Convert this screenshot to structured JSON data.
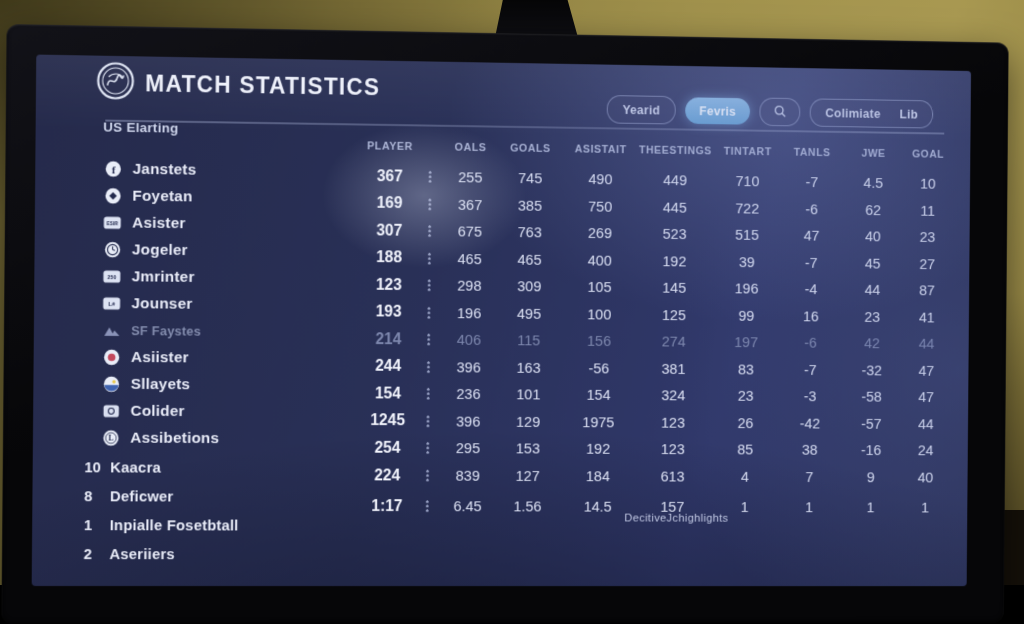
{
  "header": {
    "title": "MATCH STATISTICS"
  },
  "toolbar": {
    "buttons": [
      {
        "label": "Yearid",
        "type": "default"
      },
      {
        "label": "Fevris",
        "type": "primary"
      },
      {
        "icon": "search-icon",
        "type": "icon"
      },
      {
        "type": "group",
        "labels": [
          "Colimiate",
          "Lib"
        ]
      }
    ]
  },
  "sidebar": {
    "section_label": "US Elarting",
    "teams": [
      {
        "icon": "facebook-circle-icon",
        "label": "Janstets"
      },
      {
        "icon": "diamond-circle-icon",
        "label": "Foyetan"
      },
      {
        "icon": "esir-badge-icon",
        "label": "Asister"
      },
      {
        "icon": "clock-circle-icon",
        "label": "Jogeler"
      },
      {
        "icon": "numeric-badge-icon",
        "label": "Jmrinter"
      },
      {
        "icon": "lh-badge-icon",
        "label": "Jounser"
      },
      {
        "icon": "mountain-icon",
        "label": "SF Faystes",
        "dim": true
      },
      {
        "icon": "record-circle-icon",
        "label": "Asiister"
      },
      {
        "icon": "globe-circle-icon",
        "label": "Sllayets"
      },
      {
        "icon": "camera-badge-icon",
        "label": "Colider"
      },
      {
        "icon": "license-circle-icon",
        "label": "Assibetions"
      }
    ],
    "ranked": [
      {
        "rank": "10",
        "label": "Kaacra"
      },
      {
        "rank": "8",
        "label": "Deficwer"
      },
      {
        "rank": "1",
        "label": "Inpialle Fosetbtall"
      },
      {
        "rank": "2",
        "label": "Aseriiers"
      }
    ]
  },
  "table": {
    "columns": [
      "PLAYER",
      "OALS",
      "GOALS",
      "ASISTAIT",
      "THEESTINGS",
      "TINTART",
      "TANLS",
      "JWE",
      "GOAL"
    ],
    "rows": [
      {
        "values": [
          "367",
          "255",
          "745",
          "490",
          "449",
          "710",
          "-7",
          "4.5",
          "10"
        ]
      },
      {
        "values": [
          "169",
          "367",
          "385",
          "750",
          "445",
          "722",
          "-6",
          "62",
          "11"
        ]
      },
      {
        "values": [
          "307",
          "675",
          "763",
          "269",
          "523",
          "515",
          "47",
          "40",
          "23"
        ]
      },
      {
        "values": [
          "188",
          "465",
          "465",
          "400",
          "192",
          "39",
          "-7",
          "45",
          "27"
        ]
      },
      {
        "values": [
          "123",
          "298",
          "309",
          "105",
          "145",
          "196",
          "-4",
          "44",
          "87"
        ]
      },
      {
        "values": [
          "193",
          "196",
          "495",
          "100",
          "125",
          "99",
          "16",
          "23",
          "41"
        ]
      },
      {
        "values": [
          "214",
          "406",
          "115",
          "156",
          "274",
          "197",
          "-6",
          "42",
          "44"
        ],
        "dim": true
      },
      {
        "values": [
          "244",
          "396",
          "163",
          "-56",
          "381",
          "83",
          "-7",
          "-32",
          "47"
        ]
      },
      {
        "values": [
          "154",
          "236",
          "101",
          "154",
          "324",
          "23",
          "-3",
          "-58",
          "47"
        ]
      },
      {
        "values": [
          "1245",
          "396",
          "129",
          "1975",
          "123",
          "26",
          "-42",
          "-57",
          "44"
        ]
      },
      {
        "values": [
          "254",
          "295",
          "153",
          "192",
          "123",
          "85",
          "38",
          "-16",
          "24"
        ]
      },
      {
        "values": [
          "224",
          "839",
          "127",
          "184",
          "613",
          "4",
          "7",
          "9",
          "40"
        ]
      },
      {
        "values": [
          "1:17",
          "6.45",
          "1.56",
          "14.5",
          "157",
          "1",
          "1",
          "1",
          "1"
        ]
      }
    ],
    "note": "DecitiveJchighlights"
  },
  "colors": {
    "accent": "#76aede",
    "screen_bg": "#293057",
    "wall": "#8a7c3e"
  }
}
